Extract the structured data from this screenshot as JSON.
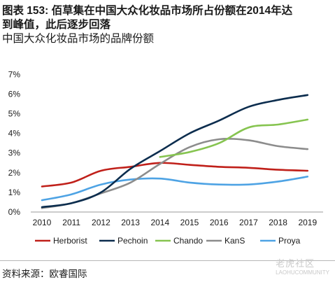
{
  "title": {
    "line1": "图表 153: 佰草集在中国大众化妆品市场所占份额在2014年达",
    "line2": "到峰值，此后逐步回落",
    "line3": "中国大众化妆品市场的品牌份额"
  },
  "source": "资料来源：欧睿国际",
  "watermark": {
    "main": "老虎社区",
    "sub": "LAOHUCOMMUNITY"
  },
  "colors": {
    "Herborist": "#c0201a",
    "Pechoin": "#0c2d4e",
    "Chando": "#86c450",
    "KanS": "#8c8c8c",
    "Proya": "#4ea3e4"
  },
  "chart_data": {
    "type": "line",
    "x": [
      "2010",
      "2011",
      "2012",
      "2013",
      "2014",
      "2015",
      "2016",
      "2017",
      "2018",
      "2019"
    ],
    "y_ticks": [
      "0%",
      "1%",
      "2%",
      "3%",
      "4%",
      "5%",
      "6%",
      "7%"
    ],
    "ylim": [
      0,
      7
    ],
    "grid": false,
    "legend_position": "bottom",
    "series": [
      {
        "name": "Herborist",
        "values": [
          1.3,
          1.5,
          2.1,
          2.3,
          2.5,
          2.4,
          2.3,
          2.25,
          2.15,
          2.1
        ]
      },
      {
        "name": "Pechoin",
        "values": [
          0.25,
          0.45,
          1.0,
          2.2,
          3.1,
          4.0,
          4.65,
          5.35,
          5.7,
          5.95
        ]
      },
      {
        "name": "Chando",
        "values": [
          null,
          null,
          null,
          null,
          2.8,
          3.05,
          3.5,
          4.3,
          4.45,
          4.7
        ]
      },
      {
        "name": "KanS",
        "values": [
          0.2,
          0.45,
          0.95,
          1.5,
          2.45,
          3.3,
          3.7,
          3.65,
          3.35,
          3.2
        ]
      },
      {
        "name": "Proya",
        "values": [
          0.6,
          0.9,
          1.4,
          1.65,
          1.7,
          1.5,
          1.4,
          1.4,
          1.55,
          1.8
        ]
      }
    ]
  }
}
